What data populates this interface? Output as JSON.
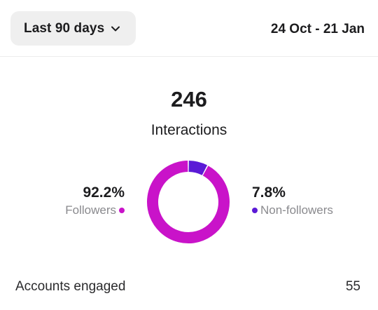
{
  "header": {
    "range_label": "Last 90 days",
    "date_range": "24 Oct - 21 Jan"
  },
  "summary": {
    "total": "246",
    "total_label": "Interactions"
  },
  "breakdown": {
    "followers": {
      "percent": "92.2%",
      "label": "Followers",
      "value": 92.2,
      "color": "#c913c9"
    },
    "non_followers": {
      "percent": "7.8%",
      "label": "Non-followers",
      "value": 7.8,
      "color": "#5b1ad6"
    }
  },
  "metrics": [
    {
      "label": "Accounts engaged",
      "value": "55"
    }
  ],
  "icons": {
    "dropdown": "chevron-down-icon"
  }
}
